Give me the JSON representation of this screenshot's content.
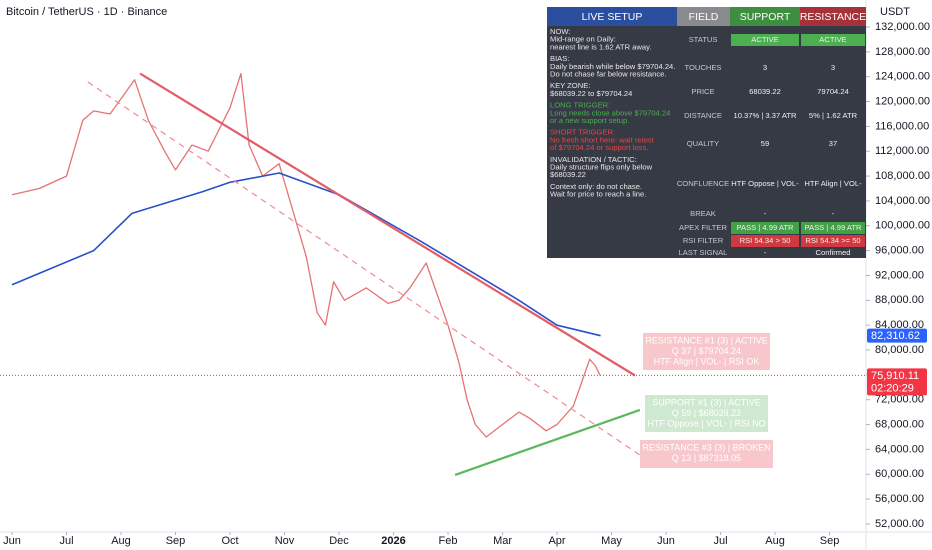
{
  "chart_data": {
    "type": "line",
    "title": "Bitcoin / TetherUS · 1D · Binance",
    "currency": "USDT",
    "xlim": [
      -0.22,
      15.65
    ],
    "ylim": [
      50700,
      136350
    ],
    "xticks": [
      {
        "value": 0,
        "label": "Jun"
      },
      {
        "value": 1,
        "label": "Jul"
      },
      {
        "value": 2,
        "label": "Aug"
      },
      {
        "value": 3,
        "label": "Sep"
      },
      {
        "value": 4,
        "label": "Oct"
      },
      {
        "value": 5,
        "label": "Nov"
      },
      {
        "value": 6,
        "label": "Dec"
      },
      {
        "value": 7,
        "label": "2026"
      },
      {
        "value": 8,
        "label": "Feb"
      },
      {
        "value": 9,
        "label": "Mar"
      },
      {
        "value": 10,
        "label": "Apr"
      },
      {
        "value": 11,
        "label": "May"
      },
      {
        "value": 12,
        "label": "Jun"
      },
      {
        "value": 13,
        "label": "Jul"
      },
      {
        "value": 14,
        "label": "Aug"
      },
      {
        "value": 15,
        "label": "Sep"
      }
    ],
    "yticks": [
      {
        "value": 52000,
        "label": "52,000.00"
      },
      {
        "value": 56000,
        "label": "56,000.00"
      },
      {
        "value": 60000,
        "label": "60,000.00"
      },
      {
        "value": 64000,
        "label": "64,000.00"
      },
      {
        "value": 68000,
        "label": "68,000.00"
      },
      {
        "value": 72000,
        "label": "72,000.00"
      },
      {
        "value": 76000,
        "label": "76,000.00"
      },
      {
        "value": 80000,
        "label": "80,000.00"
      },
      {
        "value": 84000,
        "label": "84,000.00"
      },
      {
        "value": 88000,
        "label": "88,000.00"
      },
      {
        "value": 92000,
        "label": "92,000.00"
      },
      {
        "value": 96000,
        "label": "96,000.00"
      },
      {
        "value": 100000,
        "label": "100,000.00"
      },
      {
        "value": 104000,
        "label": "104,000.00"
      },
      {
        "value": 108000,
        "label": "108,000.00"
      },
      {
        "value": 112000,
        "label": "112,000.00"
      },
      {
        "value": 116000,
        "label": "116,000.00"
      },
      {
        "value": 120000,
        "label": "120,000.00"
      },
      {
        "value": 124000,
        "label": "124,000.00"
      },
      {
        "value": 128000,
        "label": "128,000.00"
      },
      {
        "value": 132000,
        "label": "132,000.00"
      }
    ],
    "series": [
      {
        "color": "#e57373",
        "width": 1.3,
        "dash": false,
        "x": [
          0,
          0.5,
          1.0,
          1.3,
          1.5,
          1.8,
          2.25,
          2.5,
          2.8,
          3.0,
          3.3,
          3.6,
          4.0,
          4.2,
          4.35,
          4.6,
          4.9,
          5.1,
          5.4,
          5.6,
          5.75,
          5.9,
          6.1,
          6.5,
          6.9,
          7.1,
          7.3,
          7.6,
          7.8,
          8.0,
          8.2,
          8.35,
          8.5,
          8.7,
          9.0,
          9.3,
          9.5,
          9.8,
          10.0,
          10.3,
          10.6,
          10.7,
          10.79
        ],
        "values": [
          105000,
          106000,
          108000,
          117000,
          118500,
          118000,
          123500,
          117000,
          112000,
          109000,
          113000,
          112000,
          119000,
          124500,
          113000,
          108000,
          110000,
          104000,
          95000,
          86000,
          84000,
          91000,
          88000,
          90000,
          87500,
          88000,
          90000,
          94000,
          89000,
          84000,
          78000,
          72000,
          68000,
          66000,
          68000,
          70000,
          69000,
          67000,
          68000,
          71000,
          78500,
          77500,
          75910
        ]
      },
      {
        "color": "#2950c8",
        "width": 1.6,
        "dash": false,
        "x": [
          0,
          1.5,
          2.2,
          3.5,
          4.0,
          4.9,
          6.0,
          7.5,
          9.3,
          10.0,
          10.8
        ],
        "values": [
          90500,
          96000,
          102000,
          105500,
          107000,
          108500,
          105000,
          97500,
          88000,
          84000,
          82310.62
        ]
      },
      {
        "color": "#e35d68",
        "width": 2.2,
        "dash": false,
        "x": [
          2.35,
          11.43
        ],
        "values": [
          124500,
          75900
        ]
      },
      {
        "color": "#f08a92",
        "width": 1.2,
        "dash": true,
        "x": [
          1.39,
          11.52
        ],
        "values": [
          123150,
          63100
        ]
      },
      {
        "color": "#5cb85c",
        "width": 2.2,
        "dash": false,
        "x": [
          8.13,
          11.52
        ],
        "values": [
          59900,
          70350
        ]
      }
    ],
    "price_tags": [
      {
        "value": 82310.62,
        "label": "82,310.62",
        "color": "#2962ff"
      },
      {
        "value": 75910.11,
        "label": "75,910.11",
        "color": "#f23645",
        "countdown": "02:20:29"
      }
    ],
    "boxes": [
      {
        "fill": "#f7c1c6",
        "lines": [
          "RESISTANCE #1 (3) | ACTIVE",
          "Q 37 | $79704.24",
          "HTF Align | VOL- | RSI OK"
        ]
      },
      {
        "fill": "#c9e7ca",
        "lines": [
          "SUPPORT #1 (3) | ACTIVE",
          "Q 59 | $68039.22",
          "HTF Oppose | VOL- | RSI NO"
        ]
      },
      {
        "fill": "#f7c1c6",
        "lines": [
          "RESISTANCE #3 (3) | BROKEN",
          "Q 13 | $87318.05"
        ]
      }
    ],
    "panel": {
      "headers": [
        {
          "text": "LIVE SETUP",
          "color": "#2b4f9e"
        },
        {
          "text": "FIELD",
          "color": "#8a8a8e"
        },
        {
          "text": "SUPPORT",
          "color": "#3e8e41"
        },
        {
          "text": "RESISTANCE",
          "color": "#a53238"
        }
      ],
      "notes": [
        {
          "color": "#e8e8e8",
          "lines": [
            "NOW:",
            "Mid-range on Daily:",
            "nearest line is 1.62 ATR away."
          ]
        },
        {
          "color": "#e8e8e8",
          "lines": [
            "BIAS:",
            "Daily bearish while below $79704.24.",
            "Do not chase far below resistance."
          ]
        },
        {
          "color": "#e8e8e8",
          "lines": [
            "KEY ZONE:",
            "$68039.22 to $79704.24"
          ]
        },
        {
          "color": "#4caf50",
          "lines": [
            "LONG TRIGGER:",
            "Long needs close above $79704.24",
            "or a new support setup."
          ]
        },
        {
          "color": "#e04848",
          "lines": [
            "SHORT TRIGGER:",
            "No fresh short here: wait retest",
            "of $79704.24 or support loss."
          ]
        },
        {
          "color": "#e8e8e8",
          "lines": [
            "INVALIDATION / TACTIC:",
            "Daily structure flips only below",
            "$68039.22"
          ]
        },
        {
          "color": "#e8e8e8",
          "lines": [
            "Context only: do not chase.",
            "Wait for price to reach a line."
          ]
        }
      ],
      "rows": [
        {
          "field": "STATUS",
          "support": "ACTIVE",
          "resistance": "ACTIVE",
          "bg": [
            "#4caf50",
            "#4caf50"
          ]
        },
        {
          "field": "TOUCHES",
          "support": "3",
          "resistance": "3"
        },
        {
          "field": "PRICE",
          "support": "68039.22",
          "resistance": "79704.24"
        },
        {
          "field": "DISTANCE",
          "support": "10.37% | 3.37 ATR",
          "resistance": "5% | 1.62 ATR"
        },
        {
          "field": "QUALITY",
          "support": "59",
          "resistance": "37"
        },
        {
          "field": "CONFLUENCE",
          "support": "HTF Oppose | VOL-",
          "resistance": "HTF Align | VOL-"
        },
        {
          "field": "BREAK",
          "support": "-",
          "resistance": "-"
        },
        {
          "field": "APEX FILTER",
          "support": "PASS | 4.99 ATR",
          "resistance": "PASS | 4.99 ATR",
          "bg": [
            "#43a047",
            "#43a047"
          ]
        },
        {
          "field": "RSI FILTER",
          "support": "RSI 54.34 > 50",
          "resistance": "RSI 54.34 >= 50",
          "bg": [
            "#d0393f",
            "#d0393f"
          ]
        },
        {
          "field": "LAST SIGNAL",
          "support": "-",
          "resistance": "Confirmed"
        }
      ]
    }
  }
}
